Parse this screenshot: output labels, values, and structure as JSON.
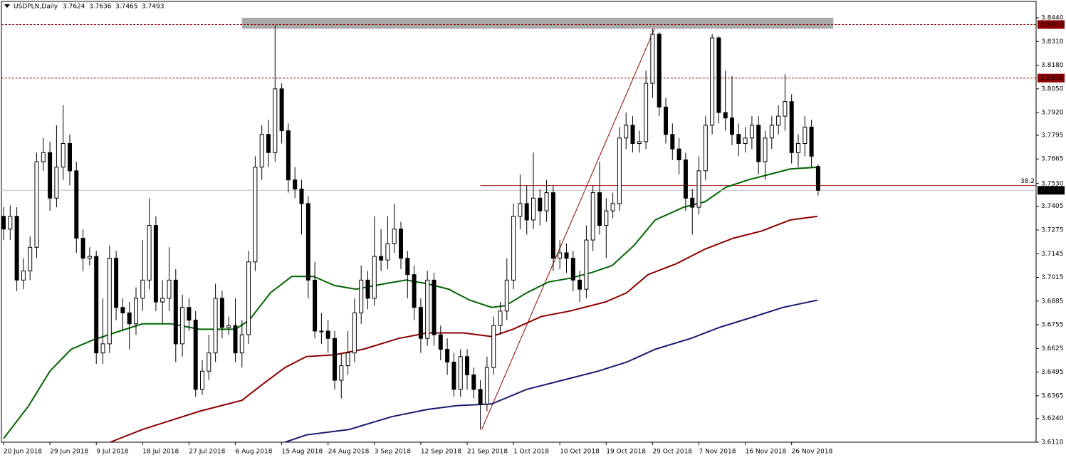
{
  "chart_data": {
    "type": "candlestick",
    "title": "USDPLN,Daily",
    "header_values": [
      3.7624,
      3.7636,
      3.7465,
      3.7493
    ],
    "categories": [
      "20 Jun 2018",
      null,
      null,
      null,
      null,
      null,
      null,
      "29 Jun 2018",
      null,
      null,
      null,
      null,
      null,
      null,
      "9 Jul 2018",
      null,
      null,
      null,
      null,
      null,
      null,
      "18 Jul 2018",
      null,
      null,
      null,
      null,
      null,
      null,
      "27 Jul 2018",
      null,
      null,
      null,
      null,
      null,
      null,
      "6 Aug 2018",
      null,
      null,
      null,
      null,
      null,
      null,
      "15 Aug 2018",
      null,
      null,
      null,
      null,
      null,
      null,
      "24 Aug 2018",
      null,
      null,
      null,
      null,
      null,
      null,
      "3 Sep 2018",
      null,
      null,
      null,
      null,
      null,
      null,
      "12 Sep 2018",
      null,
      null,
      null,
      null,
      null,
      null,
      "21 Sep 2018",
      null,
      null,
      null,
      null,
      null,
      null,
      "1 Oct 2018",
      null,
      null,
      null,
      null,
      null,
      null,
      "10 Oct 2018",
      null,
      null,
      null,
      null,
      null,
      null,
      "19 Oct 2018",
      null,
      null,
      null,
      null,
      null,
      null,
      "29 Oct 2018",
      null,
      null,
      null,
      null,
      null,
      null,
      "7 Nov 2018",
      null,
      null,
      null,
      null,
      null,
      null,
      "16 Nov 2018",
      null,
      null,
      null,
      null,
      null,
      null,
      "26 Nov 2018",
      null,
      null,
      null,
      null
    ],
    "open": [
      3.735,
      3.728,
      3.735,
      3.7,
      3.705,
      3.718,
      3.765,
      3.77,
      3.745,
      3.762,
      3.775,
      3.76,
      3.723,
      3.712,
      3.713,
      3.66,
      3.665,
      3.712,
      3.685,
      3.682,
      3.676,
      3.69,
      3.7,
      3.73,
      3.688,
      3.69,
      3.7,
      3.665,
      3.685,
      3.678,
      3.64,
      3.65,
      3.66,
      3.69,
      3.674,
      3.675,
      3.66,
      3.67,
      3.71,
      3.762,
      3.78,
      3.77,
      3.805,
      3.782,
      3.755,
      3.75,
      3.742,
      3.7,
      3.672,
      3.672,
      3.668,
      3.645,
      3.653,
      3.66,
      3.682,
      3.7,
      3.69,
      3.713,
      3.711,
      3.72,
      3.728,
      3.712,
      3.703,
      3.685,
      3.668,
      3.7,
      3.67,
      3.662,
      3.655,
      3.64,
      3.658,
      3.648,
      3.64,
      3.632,
      3.652,
      3.675,
      3.683,
      3.7,
      3.735,
      3.742,
      3.733,
      3.745,
      3.738,
      3.748,
      3.712,
      3.715,
      3.712,
      3.7,
      3.695,
      3.722,
      3.748,
      3.73,
      3.738,
      3.742,
      3.778,
      3.785,
      3.775,
      3.776,
      3.808,
      3.835,
      3.795,
      3.78,
      3.772,
      3.766,
      3.745,
      3.74,
      3.76,
      3.785,
      3.833,
      3.792,
      3.789,
      3.78,
      3.775,
      3.778,
      3.785,
      3.765,
      3.778,
      3.785,
      3.79,
      3.798,
      3.77,
      3.775,
      3.784,
      3.7624
    ],
    "high": [
      3.74,
      3.741,
      3.74,
      3.712,
      3.724,
      3.77,
      3.778,
      3.776,
      3.785,
      3.796,
      3.78,
      3.765,
      3.728,
      3.718,
      3.716,
      3.69,
      3.719,
      3.716,
      3.69,
      3.688,
      3.696,
      3.722,
      3.745,
      3.735,
      3.7,
      3.718,
      3.706,
      3.692,
      3.69,
      3.683,
      3.656,
      3.67,
      3.698,
      3.694,
      3.68,
      3.69,
      3.678,
      3.716,
      3.768,
      3.785,
      3.788,
      3.84,
      3.808,
      3.786,
      3.762,
      3.755,
      3.746,
      3.71,
      3.682,
      3.678,
      3.672,
      3.66,
      3.672,
      3.69,
      3.708,
      3.705,
      3.735,
      3.728,
      3.735,
      3.742,
      3.732,
      3.716,
      3.708,
      3.69,
      3.705,
      3.704,
      3.675,
      3.668,
      3.66,
      3.662,
      3.662,
      3.652,
      3.645,
      3.658,
      3.68,
      3.688,
      3.712,
      3.742,
      3.758,
      3.752,
      3.77,
      3.75,
      3.755,
      3.752,
      3.722,
      3.72,
      3.716,
      3.705,
      3.73,
      3.752,
      3.765,
      3.745,
      3.748,
      3.784,
      3.792,
      3.79,
      3.782,
      3.815,
      3.838,
      3.836,
      3.8,
      3.786,
      3.778,
      3.77,
      3.75,
      3.768,
      3.79,
      3.835,
      3.834,
      3.815,
      3.812,
      3.786,
      3.784,
      3.79,
      3.79,
      3.782,
      3.79,
      3.796,
      3.813,
      3.802,
      3.78,
      3.79,
      3.788,
      3.7636
    ],
    "low": [
      3.722,
      3.722,
      3.694,
      3.695,
      3.7,
      3.712,
      3.76,
      3.738,
      3.74,
      3.755,
      3.752,
      3.715,
      3.705,
      3.708,
      3.654,
      3.654,
      3.66,
      3.678,
      3.672,
      3.662,
      3.67,
      3.683,
      3.695,
      3.683,
      3.676,
      3.683,
      3.655,
      3.658,
      3.672,
      3.636,
      3.637,
      3.645,
      3.655,
      3.668,
      3.67,
      3.655,
      3.652,
      3.665,
      3.705,
      3.755,
      3.762,
      3.765,
      3.775,
      3.748,
      3.745,
      3.725,
      3.69,
      3.668,
      3.665,
      3.66,
      3.64,
      3.635,
      3.648,
      3.655,
      3.676,
      3.684,
      3.686,
      3.705,
      3.706,
      3.715,
      3.706,
      3.69,
      3.678,
      3.66,
      3.664,
      3.664,
      3.656,
      3.648,
      3.636,
      3.636,
      3.64,
      3.635,
      3.618,
      3.628,
      3.648,
      3.67,
      3.678,
      3.695,
      3.728,
      3.725,
      3.728,
      3.73,
      3.732,
      3.705,
      3.706,
      3.704,
      3.694,
      3.688,
      3.69,
      3.716,
      3.725,
      3.712,
      3.734,
      3.738,
      3.772,
      3.77,
      3.77,
      3.772,
      3.8,
      3.79,
      3.775,
      3.766,
      3.758,
      3.738,
      3.725,
      3.736,
      3.755,
      3.78,
      3.786,
      3.782,
      3.774,
      3.768,
      3.77,
      3.772,
      3.758,
      3.755,
      3.772,
      3.78,
      3.782,
      3.764,
      3.762,
      3.768,
      3.762,
      3.7465
    ],
    "close": [
      3.728,
      3.735,
      3.7,
      3.705,
      3.718,
      3.765,
      3.77,
      3.745,
      3.762,
      3.775,
      3.76,
      3.723,
      3.712,
      3.713,
      3.66,
      3.665,
      3.712,
      3.685,
      3.682,
      3.676,
      3.69,
      3.7,
      3.73,
      3.688,
      3.69,
      3.7,
      3.665,
      3.685,
      3.678,
      3.64,
      3.65,
      3.66,
      3.69,
      3.674,
      3.675,
      3.66,
      3.67,
      3.71,
      3.762,
      3.78,
      3.77,
      3.805,
      3.782,
      3.755,
      3.75,
      3.742,
      3.7,
      3.672,
      3.672,
      3.668,
      3.645,
      3.653,
      3.66,
      3.682,
      3.7,
      3.69,
      3.713,
      3.711,
      3.72,
      3.728,
      3.712,
      3.703,
      3.685,
      3.668,
      3.7,
      3.67,
      3.662,
      3.655,
      3.64,
      3.658,
      3.648,
      3.64,
      3.632,
      3.652,
      3.675,
      3.683,
      3.7,
      3.735,
      3.742,
      3.733,
      3.745,
      3.738,
      3.748,
      3.712,
      3.715,
      3.712,
      3.7,
      3.695,
      3.722,
      3.748,
      3.73,
      3.738,
      3.742,
      3.778,
      3.785,
      3.775,
      3.776,
      3.808,
      3.835,
      3.795,
      3.78,
      3.772,
      3.766,
      3.745,
      3.74,
      3.76,
      3.785,
      3.833,
      3.792,
      3.789,
      3.78,
      3.775,
      3.778,
      3.785,
      3.765,
      3.778,
      3.785,
      3.79,
      3.798,
      3.77,
      3.775,
      3.784,
      3.768,
      3.7493
    ],
    "bull_color": "#ffffff",
    "bear_color": "#000000",
    "moving_averages": [
      {
        "color": "#006400",
        "x": [
          0,
          3.8,
          7,
          10.2,
          13.4,
          16.7,
          21,
          25.3,
          29.6,
          35,
          37.1,
          40.3,
          43.5,
          46.8,
          50,
          53.2,
          57.5,
          60.8,
          64,
          67.2,
          70.4,
          73.7,
          75.8,
          79,
          82.3,
          85.5,
          88.7,
          91.9,
          95.2,
          98.4,
          102.7,
          105.9,
          109.1,
          112.4,
          115.6,
          118.8,
          122.9
        ],
        "values": [
          3.613,
          3.631,
          3.65,
          3.662,
          3.667,
          3.671,
          3.676,
          3.676,
          3.673,
          3.673,
          3.678,
          3.693,
          3.702,
          3.702,
          3.697,
          3.695,
          3.698,
          3.7,
          3.698,
          3.695,
          3.689,
          3.685,
          3.686,
          3.693,
          3.699,
          3.701,
          3.704,
          3.708,
          3.719,
          3.733,
          3.74,
          3.743,
          3.751,
          3.755,
          3.758,
          3.761,
          3.762
        ]
      },
      {
        "color": "#8b0000",
        "x": [
          16.1,
          21,
          25.3,
          29.6,
          36,
          39.2,
          42.5,
          45.7,
          50,
          54.3,
          59.7,
          64,
          69.4,
          73.7,
          76.9,
          81.2,
          85.5,
          90.9,
          94.1,
          97.3,
          101.6,
          105.9,
          110.2,
          114.5,
          118.8,
          122.9
        ],
        "values": [
          3.611,
          3.618,
          3.623,
          3.628,
          3.634,
          3.643,
          3.652,
          3.658,
          3.659,
          3.662,
          3.668,
          3.671,
          3.671,
          3.669,
          3.673,
          3.68,
          3.683,
          3.688,
          3.693,
          3.703,
          3.709,
          3.717,
          3.723,
          3.727,
          3.733,
          3.735
        ]
      },
      {
        "color": "#191970",
        "x": [
          42.5,
          45.7,
          52.2,
          58.6,
          64,
          68.3,
          73.7,
          79,
          84.4,
          89.8,
          94.1,
          98.4,
          103.8,
          108.1,
          113.4,
          117.7,
          122.9
        ],
        "values": [
          3.611,
          3.615,
          3.618,
          3.625,
          3.629,
          3.631,
          3.632,
          3.64,
          3.645,
          3.65,
          3.655,
          3.662,
          3.668,
          3.674,
          3.68,
          3.685,
          3.689
        ]
      }
    ],
    "levels": [
      {
        "value": 3.8403,
        "color": "#8b0000"
      },
      {
        "value": 3.8109,
        "color": "#8b0000"
      }
    ],
    "fib_level": {
      "label": "38.2",
      "value": 3.7519,
      "x_start": 72,
      "color": "#b22222"
    },
    "trendline": {
      "x": [
        72.2,
        98.3
      ],
      "values": [
        3.618,
        3.838
      ],
      "color": "#8b0000"
    },
    "zone": {
      "x": [
        36,
        125.3
      ],
      "y": [
        3.838,
        3.844
      ],
      "color": "#a9a9a9"
    },
    "ylim": [
      3.611,
      3.844
    ],
    "yticks": [
      {
        "value": 3.844,
        "label": "3.8440"
      },
      {
        "value": 3.831,
        "label": "3.8310"
      },
      {
        "value": 3.818,
        "label": "3.8180"
      },
      {
        "value": 3.805,
        "label": "3.8050"
      },
      {
        "value": 3.792,
        "label": "3.7920"
      },
      3.7795,
      3.7665,
      {
        "value": 3.753,
        "label": "3.7530"
      },
      3.7405,
      3.7275,
      3.7145,
      3.7015,
      3.6885,
      3.6755,
      3.6625,
      3.6495,
      3.6365,
      {
        "value": 3.624,
        "label": "3.6240"
      },
      {
        "value": 3.611,
        "label": "3.6110"
      }
    ],
    "grid": false
  }
}
